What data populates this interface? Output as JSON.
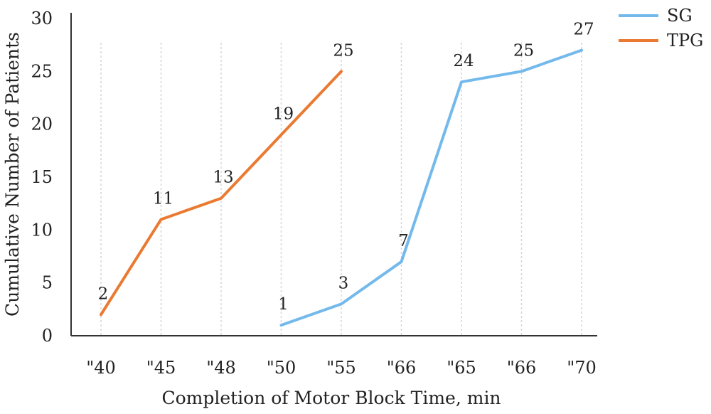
{
  "chart_data": {
    "type": "line",
    "title": "",
    "xlabel": "Completion of Motor Block Time, min",
    "ylabel": "Cumulative Number of Patients",
    "categories": [
      "\"40",
      "\"45",
      "\"48",
      "\"50",
      "\"55",
      "\"66",
      "\"65",
      "\"66",
      "\"70"
    ],
    "ylim": [
      0,
      30
    ],
    "yticks": [
      0,
      5,
      10,
      15,
      20,
      25,
      30
    ],
    "grid": "vertical-dashed",
    "legend_position": "top-right",
    "series": [
      {
        "name": "SG",
        "color": "#74b9ec",
        "points": [
          {
            "category_index": 3,
            "value": 1
          },
          {
            "category_index": 4,
            "value": 3
          },
          {
            "category_index": 5,
            "value": 7
          },
          {
            "category_index": 6,
            "value": 24
          },
          {
            "category_index": 7,
            "value": 25
          },
          {
            "category_index": 8,
            "value": 27
          }
        ]
      },
      {
        "name": "TPG",
        "color": "#ea7a32",
        "points": [
          {
            "category_index": 0,
            "value": 2
          },
          {
            "category_index": 1,
            "value": 11
          },
          {
            "category_index": 2,
            "value": 13
          },
          {
            "category_index": 3,
            "value": 19
          },
          {
            "category_index": 4,
            "value": 25
          }
        ]
      }
    ]
  }
}
